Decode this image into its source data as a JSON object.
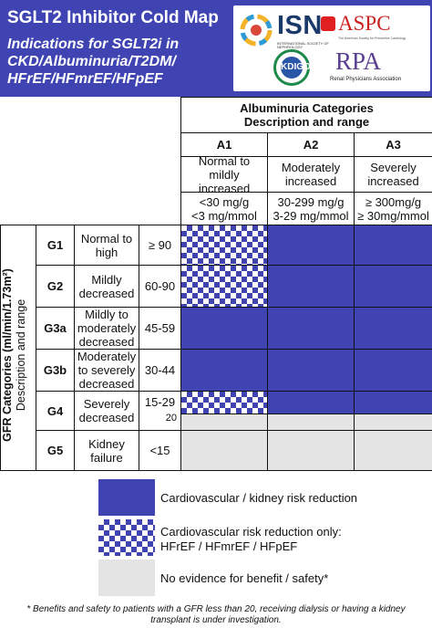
{
  "header": {
    "title": "SGLT2 Inhibitor Cold Map",
    "subtitle_lines": [
      "Indications for SGLT2i in",
      "CKD/Albuminuria/T2DM/",
      "HFrEF/HFmrEF/HFpEF"
    ]
  },
  "logos": {
    "isn": "ISN",
    "isn_tagline": "INTERNATIONAL SOCIETY OF NEPHROLOGY",
    "aspc": "ASPC",
    "aspc_tagline": "The American Society for Preventive Cardiology",
    "kdigo": "KDIGO",
    "rpa": "RPA",
    "rpa_tagline": "Renal Physicians Association"
  },
  "colors": {
    "benefit": "#3f44b2",
    "no_evidence": "#e4e4e4",
    "header_bg": "#3f44b2"
  },
  "chart_data": {
    "type": "heatmap",
    "column_group": {
      "title": "Albuminuria Categories",
      "subtitle": "Description and range"
    },
    "row_group": {
      "title": "GFR Categories (ml/min/1.73m²)",
      "subtitle": "Description and range"
    },
    "columns": [
      {
        "code": "A1",
        "description": "Normal to mildly increased",
        "range": [
          "<30 mg/g",
          "<3 mg/mmol"
        ]
      },
      {
        "code": "A2",
        "description": "Moderately increased",
        "range": [
          "30-299 mg/g",
          "3-29 mg/mmol"
        ]
      },
      {
        "code": "A3",
        "description": "Severely increased",
        "range": [
          "≥ 300mg/g",
          "≥ 30mg/mmol"
        ]
      }
    ],
    "rows": [
      {
        "code": "G1",
        "description": "Normal to high",
        "range": "≥ 90",
        "cells": [
          "checker",
          "blue",
          "blue"
        ]
      },
      {
        "code": "G2",
        "description": "Mildly decreased",
        "range": "60-90",
        "cells": [
          "checker",
          "blue",
          "blue"
        ]
      },
      {
        "code": "G3a",
        "description": "Mildly to moderately decreased",
        "range": "45-59",
        "cells": [
          "blue",
          "blue",
          "blue"
        ]
      },
      {
        "code": "G3b",
        "description": "Moderately to severely decreased",
        "range": "30-44",
        "cells": [
          "blue",
          "blue",
          "blue"
        ]
      },
      {
        "code": "G4",
        "description": "Severely decreased",
        "range": "15-29",
        "range_extra": "20",
        "split_fraction": 0.6,
        "cells_upper": [
          "checker",
          "blue",
          "blue"
        ],
        "cells_lower": [
          "gray",
          "gray",
          "gray"
        ]
      },
      {
        "code": "G5",
        "description": "Kidney failure",
        "range": "<15",
        "cells": [
          "gray",
          "gray",
          "gray"
        ]
      }
    ],
    "legend": [
      {
        "pattern": "blue",
        "label": [
          "Cardiovascular / kidney risk reduction"
        ]
      },
      {
        "pattern": "checker",
        "label": [
          "Cardiovascular risk reduction only:",
          "HFrEF / HFmrEF / HFpEF"
        ]
      },
      {
        "pattern": "gray",
        "label": [
          "No evidence for benefit / safety*"
        ]
      }
    ]
  },
  "footnote": "* Benefits and safety to patients with a GFR less than 20, receiving dialysis or having a kidney transplant is under investigation."
}
